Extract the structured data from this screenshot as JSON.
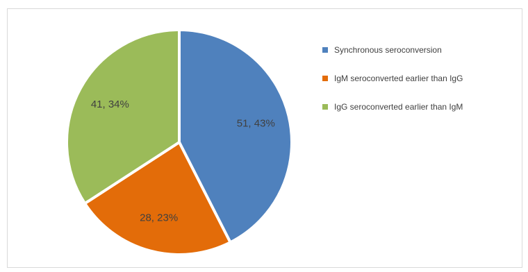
{
  "chart_data": {
    "type": "pie",
    "title": "",
    "legend_position": "right",
    "slices": [
      {
        "name": "Synchronous seroconversion",
        "value": 51,
        "percent": 43,
        "label": "51, 43%",
        "color": "#4f81bd"
      },
      {
        "name": "IgM seroconverted earlier than  IgG",
        "value": 28,
        "percent": 23,
        "label": "28, 23%",
        "color": "#e36c09"
      },
      {
        "name": "IgG seroconverted earlier than  IgM",
        "value": 41,
        "percent": 34,
        "label": "41, 34%",
        "color": "#9bbb59"
      }
    ]
  }
}
